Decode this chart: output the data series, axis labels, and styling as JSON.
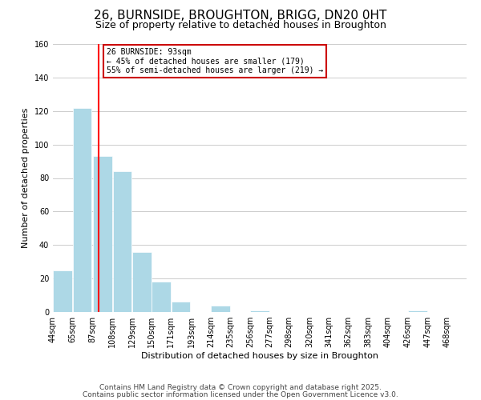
{
  "title": "26, BURNSIDE, BROUGHTON, BRIGG, DN20 0HT",
  "subtitle": "Size of property relative to detached houses in Broughton",
  "xlabel": "Distribution of detached houses by size in Broughton",
  "ylabel": "Number of detached properties",
  "bar_left_edges": [
    44,
    65,
    87,
    108,
    129,
    150,
    171,
    193,
    214,
    235,
    256,
    277,
    298,
    320,
    341,
    362,
    383,
    404,
    426,
    447
  ],
  "bar_heights": [
    25,
    122,
    93,
    84,
    36,
    18,
    6,
    0,
    4,
    0,
    1,
    0,
    0,
    0,
    0,
    0,
    0,
    0,
    1,
    0
  ],
  "bin_width": 21,
  "x_tick_labels": [
    "44sqm",
    "65sqm",
    "87sqm",
    "108sqm",
    "129sqm",
    "150sqm",
    "171sqm",
    "193sqm",
    "214sqm",
    "235sqm",
    "256sqm",
    "277sqm",
    "298sqm",
    "320sqm",
    "341sqm",
    "362sqm",
    "383sqm",
    "404sqm",
    "426sqm",
    "447sqm",
    "468sqm"
  ],
  "x_tick_positions": [
    44,
    65,
    87,
    108,
    129,
    150,
    171,
    193,
    214,
    235,
    256,
    277,
    298,
    320,
    341,
    362,
    383,
    404,
    426,
    447,
    468
  ],
  "bar_color": "#add8e6",
  "bar_edge_color": "#ffffff",
  "property_line_x": 93,
  "property_line_color": "#ff0000",
  "ylim": [
    0,
    160
  ],
  "yticks": [
    0,
    20,
    40,
    60,
    80,
    100,
    120,
    140,
    160
  ],
  "annotation_title": "26 BURNSIDE: 93sqm",
  "annotation_line1": "← 45% of detached houses are smaller (179)",
  "annotation_line2": "55% of semi-detached houses are larger (219) →",
  "grid_color": "#cccccc",
  "background_color": "#ffffff",
  "footer_line1": "Contains HM Land Registry data © Crown copyright and database right 2025.",
  "footer_line2": "Contains public sector information licensed under the Open Government Licence v3.0.",
  "title_fontsize": 11,
  "subtitle_fontsize": 9,
  "axis_label_fontsize": 8,
  "tick_fontsize": 7,
  "footer_fontsize": 6.5
}
